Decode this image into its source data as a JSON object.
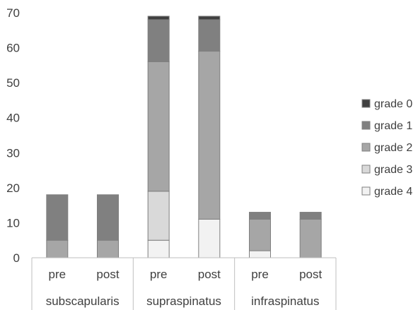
{
  "chart_data": {
    "type": "bar",
    "stacked": true,
    "title": "",
    "xlabel": "",
    "ylabel": "",
    "ylim": [
      0,
      70
    ],
    "yticks": [
      0,
      10,
      20,
      30,
      40,
      50,
      60,
      70
    ],
    "grid": false,
    "legend_position": "right",
    "categories": [
      "pre",
      "post",
      "pre",
      "post",
      "pre",
      "post"
    ],
    "groups": [
      {
        "label": "subscapularis",
        "count": 2
      },
      {
        "label": "supraspinatus",
        "count": 2
      },
      {
        "label": "infraspinatus",
        "count": 2
      }
    ],
    "series": [
      {
        "name": "grade 4",
        "color": "#f2f2f2",
        "values": [
          0,
          0,
          5,
          11,
          2,
          0
        ]
      },
      {
        "name": "grade 3",
        "color": "#d9d9d9",
        "values": [
          0,
          0,
          14,
          0,
          0,
          0
        ]
      },
      {
        "name": "grade 2",
        "color": "#a6a6a6",
        "values": [
          5,
          5,
          37,
          48,
          9,
          11
        ]
      },
      {
        "name": "grade 1",
        "color": "#808080",
        "values": [
          13,
          13,
          12,
          9,
          2,
          2
        ]
      },
      {
        "name": "grade 0",
        "color": "#404040",
        "values": [
          0,
          0,
          1,
          1,
          0,
          0
        ]
      }
    ],
    "legend_order": [
      "grade 0",
      "grade 1",
      "grade 2",
      "grade 3",
      "grade 4"
    ]
  }
}
